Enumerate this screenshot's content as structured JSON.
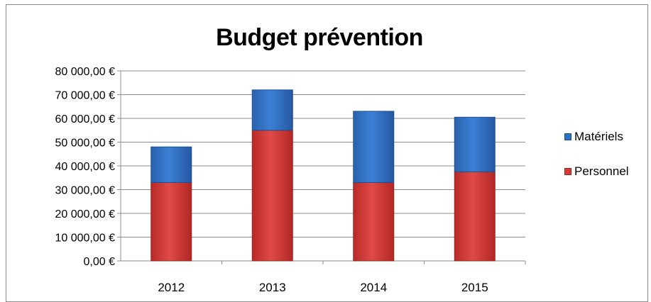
{
  "chart_data": {
    "type": "bar",
    "stacked": true,
    "title": "Budget prévention",
    "categories": [
      "2012",
      "2013",
      "2014",
      "2015"
    ],
    "series": [
      {
        "name": "Personnel",
        "values": [
          33000,
          55000,
          33000,
          37500
        ],
        "color": "#d23b38"
      },
      {
        "name": "Matériels",
        "values": [
          15000,
          17000,
          30000,
          23000
        ],
        "color": "#2e6fc0"
      }
    ],
    "yticks": [
      "0,00 €",
      "10 000,00 €",
      "20 000,00 €",
      "30 000,00 €",
      "40 000,00 €",
      "50 000,00 €",
      "60 000,00 €",
      "70 000,00 €",
      "80 000,00 €"
    ],
    "ylim": [
      0,
      80000
    ],
    "grid": true,
    "legend_position": "right",
    "legend_order": [
      "Matériels",
      "Personnel"
    ]
  }
}
